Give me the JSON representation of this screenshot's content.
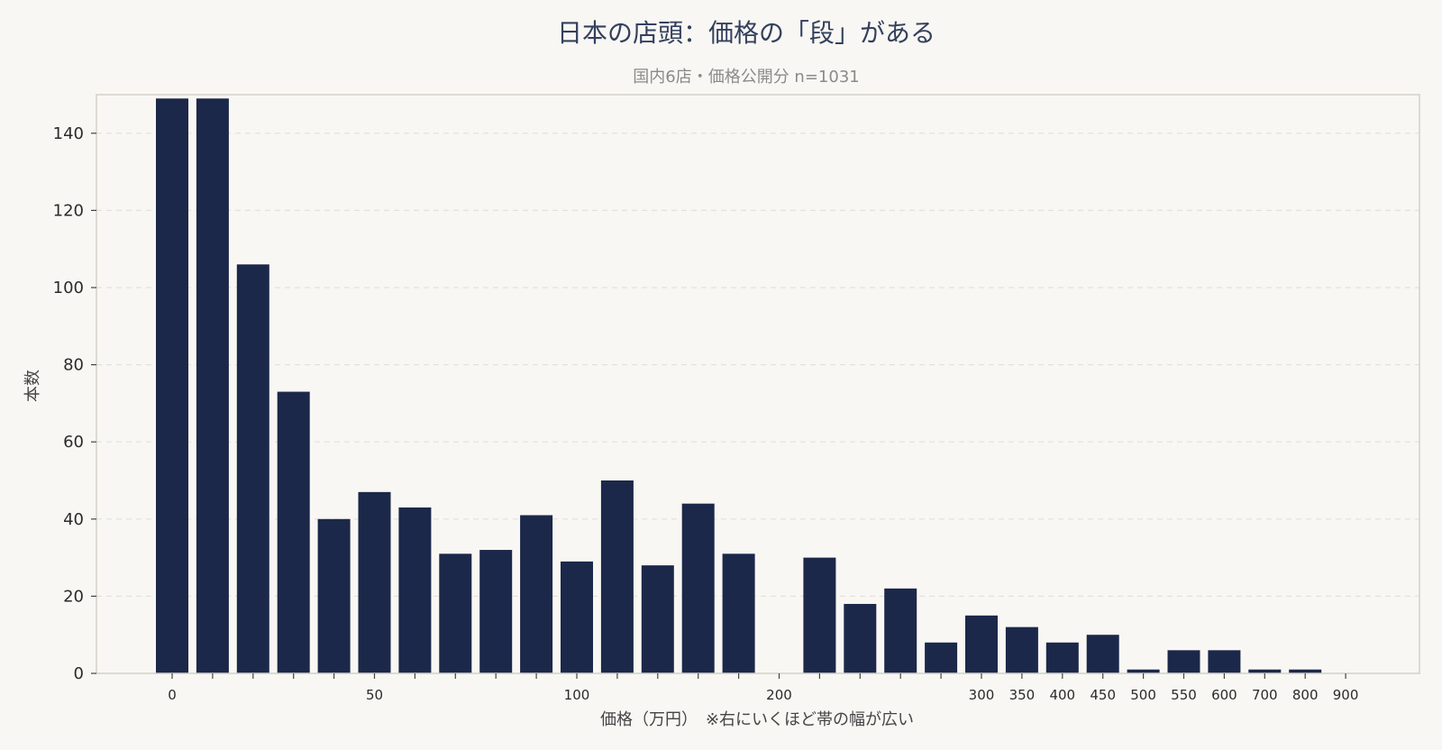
{
  "colors": {
    "bar": "#1c284a",
    "background": "#f8f7f3",
    "plot_border": "#d2d0c8",
    "grid": "#e3e1da",
    "title": "#34405e",
    "subtitle": "#8a8a8a"
  },
  "chart_data": {
    "type": "bar",
    "title": "日本の店頭：価格の「段」がある",
    "subtitle": "国内6店・価格公開分 n=1031",
    "xlabel": "価格（万円）　※右にいくほど帯の幅が広い",
    "ylabel": "本数",
    "ylim": [
      0,
      150
    ],
    "grid": "horizontal dashed",
    "yticks": [
      0,
      20,
      40,
      60,
      80,
      100,
      120,
      140
    ],
    "x_tick_labels": [
      {
        "slot": 0,
        "label": "0"
      },
      {
        "slot": 5,
        "label": "50"
      },
      {
        "slot": 10,
        "label": "100"
      },
      {
        "slot": 15,
        "label": "200"
      },
      {
        "slot": 20,
        "label": "300"
      },
      {
        "slot": 21,
        "label": "350"
      },
      {
        "slot": 22,
        "label": "400"
      },
      {
        "slot": 23,
        "label": "450"
      },
      {
        "slot": 24,
        "label": "500"
      },
      {
        "slot": 25,
        "label": "550"
      },
      {
        "slot": 26,
        "label": "600"
      },
      {
        "slot": 27,
        "label": "700"
      },
      {
        "slot": 28,
        "label": "800"
      },
      {
        "slot": 29,
        "label": "900"
      }
    ],
    "values": [
      149,
      149,
      106,
      73,
      40,
      47,
      43,
      31,
      32,
      41,
      29,
      50,
      28,
      44,
      31,
      0,
      30,
      18,
      22,
      8,
      15,
      12,
      8,
      10,
      1,
      6,
      6,
      1,
      1,
      0
    ]
  }
}
